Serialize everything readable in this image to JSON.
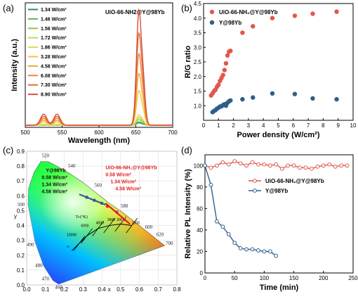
{
  "panels": {
    "a": {
      "label": "(a)"
    },
    "b": {
      "label": "(b)"
    },
    "c": {
      "label": "(c)"
    },
    "d": {
      "label": "(d)"
    }
  },
  "chart_data": [
    {
      "id": "a",
      "type": "line",
      "title": "UiO-66-NH2@Y@98Yb",
      "xlabel": "Wavelength (nm)",
      "ylabel": "Intensity (a.u.)",
      "xlim": [
        500,
        700
      ],
      "xticks": [
        500,
        550,
        600,
        650,
        700
      ],
      "legend_position": "top-left",
      "colors": [
        "#2e8b57",
        "#5cb85c",
        "#8cc63f",
        "#c2d84a",
        "#e6d84a",
        "#f4c542",
        "#f0a830",
        "#e98a3a",
        "#e06d3c",
        "#d9503c"
      ],
      "series": [
        {
          "name": "1.34 W/cm²",
          "peak": 0.02
        },
        {
          "name": "1.46 W/cm²",
          "peak": 0.03
        },
        {
          "name": "1.56 W/cm²",
          "peak": 0.05
        },
        {
          "name": "1.72 W/cm²",
          "peak": 0.07
        },
        {
          "name": "1.86 W/cm²",
          "peak": 0.09
        },
        {
          "name": "3.28 W/cm²",
          "peak": 0.3
        },
        {
          "name": "4.58 W/cm²",
          "peak": 0.45
        },
        {
          "name": "6.08 W/cm²",
          "peak": 0.62
        },
        {
          "name": "7.30 W/cm²",
          "peak": 0.8
        },
        {
          "name": "8.90 W/cm²",
          "peak": 1.0
        }
      ]
    },
    {
      "id": "b",
      "type": "scatter",
      "xlabel": "Power density (W/cm²)",
      "ylabel": "R/G ratio",
      "xlim": [
        0,
        10
      ],
      "ylim": [
        0.5,
        4.5
      ],
      "xticks": [
        0,
        1,
        2,
        3,
        4,
        5,
        6,
        7,
        8,
        9,
        10
      ],
      "yticks": [
        1.0,
        1.5,
        2.0,
        2.5,
        3.0,
        3.5,
        4.0,
        4.5
      ],
      "legend_position": "top-left",
      "series": [
        {
          "name": "UiO-66-NH₂@Y@98Yb",
          "color": "#e2574c",
          "x": [
            0.5,
            0.6,
            0.7,
            0.8,
            0.9,
            1.0,
            1.1,
            1.2,
            1.3,
            1.4,
            1.5,
            1.6,
            1.7,
            1.8,
            2.6,
            3.3,
            4.6,
            6.1,
            7.3,
            8.9
          ],
          "y": [
            1.35,
            1.42,
            1.5,
            1.55,
            1.65,
            1.72,
            1.85,
            1.95,
            2.05,
            2.22,
            2.45,
            2.72,
            2.85,
            2.88,
            3.5,
            3.72,
            4.0,
            4.08,
            4.15,
            4.22
          ]
        },
        {
          "name": "Y@98Yb",
          "color": "#2f5f8a",
          "x": [
            0.6,
            0.7,
            0.8,
            0.9,
            1.0,
            1.1,
            1.2,
            1.3,
            1.4,
            1.5,
            1.6,
            1.7,
            1.8,
            2.6,
            3.3,
            4.6,
            6.1,
            7.3,
            8.9
          ],
          "y": [
            0.78,
            0.82,
            0.85,
            0.9,
            0.93,
            0.97,
            0.98,
            1.02,
            1.05,
            1.0,
            1.1,
            1.15,
            1.18,
            1.22,
            1.28,
            1.42,
            1.4,
            1.25,
            1.22
          ]
        }
      ]
    },
    {
      "id": "c",
      "type": "scatter",
      "xlabel": "x",
      "ylabel": "y",
      "xlim": [
        0,
        0.8
      ],
      "ylim": [
        0,
        0.9
      ],
      "xticks": [
        0.0,
        0.1,
        0.2,
        0.3,
        0.4,
        0.5,
        0.6,
        0.7,
        0.8
      ],
      "yticks": [
        0.0,
        0.1,
        0.2,
        0.3,
        0.4,
        0.5,
        0.6,
        0.7,
        0.8,
        0.9
      ],
      "wavelength_labels": [
        "460",
        "470",
        "480",
        "490",
        "500",
        "520",
        "540",
        "560",
        "580",
        "600",
        "620",
        "700"
      ],
      "cct_label": "Tᴄ(°K)",
      "cct_ticks": [
        "1500",
        "2000",
        "3000",
        "4000",
        "6000",
        "10000",
        "∞"
      ],
      "groups": [
        {
          "name": "Y@98Yb",
          "color": "#2f5f8a",
          "items": [
            "0.58 W/cm²",
            "1.34 W/cm²",
            "4.58 W/cm²"
          ],
          "x": [
            0.32,
            0.36,
            0.4
          ],
          "y": [
            0.59,
            0.57,
            0.55
          ]
        },
        {
          "name": "UiO-66-NH₂@Y@98Yb",
          "color": "#e02020",
          "items": [
            "0.58 W/cm²",
            "1.34 W/cm²",
            "4.58 W/cm²"
          ],
          "x": [
            0.43,
            0.48,
            0.52
          ],
          "y": [
            0.53,
            0.49,
            0.44
          ]
        }
      ]
    },
    {
      "id": "d",
      "type": "line",
      "xlabel": "Time (min)",
      "ylabel": "Relative PL Intensity (%)",
      "xlim": [
        0,
        250
      ],
      "ylim": [
        0,
        110
      ],
      "xticks": [
        0,
        50,
        100,
        150,
        200,
        250
      ],
      "yticks": [
        0,
        20,
        40,
        60,
        80,
        100
      ],
      "legend_position": "center-right",
      "series": [
        {
          "name": "UiO-66-NH₂@Y@98Yb",
          "color": "#e2574c",
          "marker": "circle-open",
          "x": [
            0,
            10,
            20,
            30,
            40,
            50,
            60,
            70,
            80,
            90,
            100,
            110,
            120,
            130,
            140,
            150,
            160,
            170,
            180,
            190,
            200,
            210,
            220,
            230,
            240
          ],
          "y": [
            100,
            98,
            100,
            103,
            101,
            104,
            102,
            100,
            103,
            101,
            101,
            100,
            101,
            97,
            100,
            100,
            98,
            98,
            97,
            99,
            100,
            101,
            99,
            100,
            100
          ]
        },
        {
          "name": "Y@98Yb",
          "color": "#2f5f8a",
          "marker": "circle-open",
          "x": [
            0,
            10,
            20,
            30,
            40,
            50,
            60,
            70,
            80,
            90,
            100,
            110,
            120
          ],
          "y": [
            100,
            82,
            48,
            43,
            36,
            28,
            23,
            22,
            22,
            21,
            20,
            20,
            16
          ]
        }
      ]
    }
  ]
}
